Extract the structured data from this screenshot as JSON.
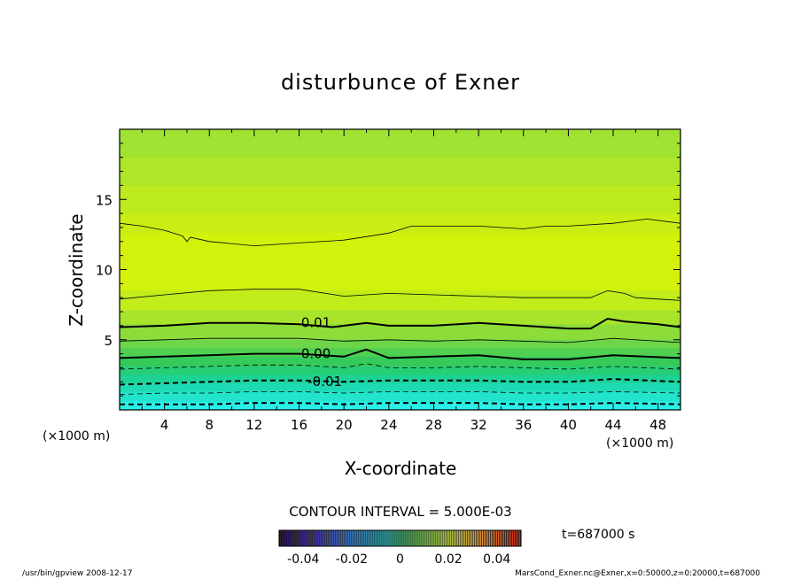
{
  "chart_data": {
    "type": "contour",
    "title": "disturbunce of Exner",
    "xlabel": "X-coordinate",
    "ylabel": "Z-coordinate",
    "x_unit": "(×1000 m)",
    "x_unit_right": "(×1000 m)",
    "xlim": [
      0,
      50
    ],
    "ylim": [
      0,
      20
    ],
    "x_ticks": [
      "4",
      "8",
      "12",
      "16",
      "20",
      "24",
      "28",
      "32",
      "36",
      "40",
      "44",
      "48"
    ],
    "y_ticks": [
      "5",
      "10",
      "15"
    ],
    "contour_interval_text": "CONTOUR INTERVAL = 5.000E-03",
    "contour_labels": [
      {
        "text": "0.01",
        "x": 17.5,
        "z": 5.9
      },
      {
        "text": "0.00",
        "x": 17.5,
        "z": 3.7
      },
      {
        "text": "-0.01",
        "x": 18.3,
        "z": 1.7
      }
    ],
    "contours": [
      {
        "level": "0.02",
        "style": "thin",
        "points": [
          [
            0,
            13.3
          ],
          [
            2,
            13.1
          ],
          [
            4,
            12.8
          ],
          [
            5.6,
            12.4
          ],
          [
            6,
            12.0
          ],
          [
            6.3,
            12.3
          ],
          [
            8,
            12.0
          ],
          [
            12,
            11.7
          ],
          [
            16,
            11.9
          ],
          [
            20,
            12.1
          ],
          [
            24,
            12.6
          ],
          [
            26,
            13.1
          ],
          [
            28,
            13.1
          ],
          [
            32,
            13.1
          ],
          [
            36,
            12.9
          ],
          [
            38,
            13.1
          ],
          [
            40,
            13.1
          ],
          [
            44,
            13.3
          ],
          [
            47,
            13.6
          ],
          [
            50,
            13.3
          ]
        ]
      },
      {
        "level": "0.015",
        "style": "thin",
        "points": [
          [
            0,
            7.9
          ],
          [
            4,
            8.2
          ],
          [
            8,
            8.5
          ],
          [
            12,
            8.6
          ],
          [
            16,
            8.6
          ],
          [
            20,
            8.1
          ],
          [
            22,
            8.2
          ],
          [
            24,
            8.3
          ],
          [
            28,
            8.2
          ],
          [
            32,
            8.1
          ],
          [
            36,
            8.0
          ],
          [
            40,
            8.0
          ],
          [
            42,
            8.0
          ],
          [
            43.5,
            8.5
          ],
          [
            45,
            8.3
          ],
          [
            46,
            8.0
          ],
          [
            50,
            7.8
          ]
        ]
      },
      {
        "level": "0.01",
        "style": "thick",
        "points": [
          [
            0,
            5.9
          ],
          [
            4,
            6.0
          ],
          [
            8,
            6.2
          ],
          [
            12,
            6.2
          ],
          [
            16,
            6.1
          ],
          [
            19,
            5.9
          ],
          [
            22,
            6.2
          ],
          [
            24,
            6.0
          ],
          [
            28,
            6.0
          ],
          [
            32,
            6.2
          ],
          [
            36,
            6.0
          ],
          [
            40,
            5.8
          ],
          [
            42,
            5.8
          ],
          [
            43.5,
            6.5
          ],
          [
            45,
            6.3
          ],
          [
            48,
            6.1
          ],
          [
            50,
            5.9
          ]
        ]
      },
      {
        "level": "0.005",
        "style": "thin",
        "points": [
          [
            0,
            4.9
          ],
          [
            4,
            5.0
          ],
          [
            8,
            5.1
          ],
          [
            12,
            5.1
          ],
          [
            16,
            5.1
          ],
          [
            20,
            4.9
          ],
          [
            24,
            5.0
          ],
          [
            28,
            4.9
          ],
          [
            32,
            5.0
          ],
          [
            36,
            4.9
          ],
          [
            40,
            4.8
          ],
          [
            44,
            5.1
          ],
          [
            50,
            4.8
          ]
        ]
      },
      {
        "level": "0.00",
        "style": "thick",
        "points": [
          [
            0,
            3.7
          ],
          [
            4,
            3.8
          ],
          [
            8,
            3.9
          ],
          [
            12,
            4.0
          ],
          [
            16,
            4.0
          ],
          [
            20,
            3.8
          ],
          [
            22,
            4.3
          ],
          [
            24,
            3.7
          ],
          [
            28,
            3.8
          ],
          [
            32,
            3.9
          ],
          [
            36,
            3.6
          ],
          [
            40,
            3.6
          ],
          [
            44,
            3.9
          ],
          [
            50,
            3.7
          ]
        ]
      },
      {
        "level": "-0.005",
        "style": "dashed",
        "points": [
          [
            0,
            2.9
          ],
          [
            4,
            3.0
          ],
          [
            8,
            3.1
          ],
          [
            12,
            3.2
          ],
          [
            16,
            3.2
          ],
          [
            20,
            3.0
          ],
          [
            22,
            3.3
          ],
          [
            24,
            3.0
          ],
          [
            28,
            3.0
          ],
          [
            32,
            3.1
          ],
          [
            36,
            3.0
          ],
          [
            40,
            2.9
          ],
          [
            44,
            3.1
          ],
          [
            50,
            2.9
          ]
        ]
      },
      {
        "level": "-0.01",
        "style": "dashed-thick",
        "points": [
          [
            0,
            1.8
          ],
          [
            4,
            1.9
          ],
          [
            8,
            2.0
          ],
          [
            12,
            2.1
          ],
          [
            16,
            2.1
          ],
          [
            20,
            2.0
          ],
          [
            24,
            2.1
          ],
          [
            28,
            2.1
          ],
          [
            32,
            2.1
          ],
          [
            36,
            2.0
          ],
          [
            40,
            2.0
          ],
          [
            44,
            2.2
          ],
          [
            50,
            2.0
          ]
        ]
      },
      {
        "level": "-0.015",
        "style": "dashed",
        "points": [
          [
            0,
            1.1
          ],
          [
            4,
            1.2
          ],
          [
            8,
            1.2
          ],
          [
            12,
            1.3
          ],
          [
            16,
            1.3
          ],
          [
            20,
            1.2
          ],
          [
            24,
            1.3
          ],
          [
            28,
            1.3
          ],
          [
            32,
            1.3
          ],
          [
            36,
            1.2
          ],
          [
            40,
            1.2
          ],
          [
            44,
            1.3
          ],
          [
            50,
            1.2
          ]
        ]
      },
      {
        "level": "-0.02",
        "style": "dashed-thick",
        "points": [
          [
            0,
            0.4
          ],
          [
            4,
            0.4
          ],
          [
            8,
            0.4
          ],
          [
            12,
            0.5
          ],
          [
            16,
            0.5
          ],
          [
            20,
            0.4
          ],
          [
            24,
            0.5
          ],
          [
            28,
            0.5
          ],
          [
            32,
            0.5
          ],
          [
            36,
            0.4
          ],
          [
            40,
            0.4
          ],
          [
            44,
            0.5
          ],
          [
            50,
            0.4
          ]
        ]
      }
    ],
    "fill_bands": [
      {
        "z_top": 20,
        "color": "#a0e232"
      },
      {
        "z_top": 18,
        "color": "#aee628"
      },
      {
        "z_top": 16,
        "color": "#bcea1e"
      },
      {
        "z_top": 14,
        "color": "#c8ee14"
      },
      {
        "z_top": 12.6,
        "color": "#d2f20c"
      },
      {
        "z_top": 8.5,
        "color": "#c2ec1a"
      },
      {
        "z_top": 7.1,
        "color": "#a8e42c"
      },
      {
        "z_top": 6.1,
        "color": "#8cdc3a"
      },
      {
        "z_top": 5.0,
        "color": "#6cd648"
      },
      {
        "z_top": 4.4,
        "color": "#50d050"
      },
      {
        "z_top": 3.8,
        "color": "#36ca5a"
      },
      {
        "z_top": 3.1,
        "color": "#26ce76"
      },
      {
        "z_top": 2.5,
        "color": "#1ed296"
      },
      {
        "z_top": 1.9,
        "color": "#1edab4"
      },
      {
        "z_top": 1.3,
        "color": "#22e4cc"
      },
      {
        "z_top": 0.6,
        "color": "#2af0e8"
      }
    ],
    "colorbar": {
      "ticks": [
        "-0.04",
        "-0.02",
        "0",
        "0.02",
        "0.04"
      ],
      "range": [
        -0.05,
        0.05
      ]
    },
    "time_label": "t=687000 s"
  },
  "footer": {
    "left": "/usr/bin/gpview   2008-12-17",
    "right": "MarsCond_Exner.nc@Exner,x=0:50000,z=0:20000,t=687000"
  }
}
